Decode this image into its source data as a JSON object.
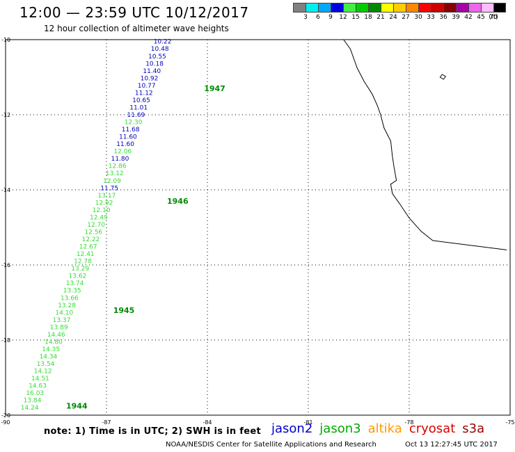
{
  "header": {
    "title": "12:00 — 23:59 UTC 10/12/2017",
    "subtitle": "12 hour collection of altimeter wave heights"
  },
  "legend": {
    "unit": "(ft)",
    "items": [
      {
        "label": "3",
        "color": "#808080"
      },
      {
        "label": "6",
        "color": "#00f0f0"
      },
      {
        "label": "9",
        "color": "#00a8ff"
      },
      {
        "label": "12",
        "color": "#0000e0"
      },
      {
        "label": "15",
        "color": "#44ee44"
      },
      {
        "label": "18",
        "color": "#00cc00"
      },
      {
        "label": "21",
        "color": "#008800"
      },
      {
        "label": "24",
        "color": "#ffff00"
      },
      {
        "label": "27",
        "color": "#ffcc00"
      },
      {
        "label": "30",
        "color": "#ff8800"
      },
      {
        "label": "33",
        "color": "#ff0000"
      },
      {
        "label": "36",
        "color": "#cc0000"
      },
      {
        "label": "39",
        "color": "#880000"
      },
      {
        "label": "42",
        "color": "#aa00aa"
      },
      {
        "label": "45",
        "color": "#ee66ee"
      },
      {
        "label": "70",
        "color": "#ffbbff"
      },
      {
        "label": "",
        "color": "#000000"
      }
    ]
  },
  "map": {
    "lon_range": [
      -90,
      -75
    ],
    "lat_range": [
      -20,
      -10
    ],
    "lon_ticks": [
      "-90",
      "-87",
      "-84",
      "-81",
      "-78",
      "-75"
    ],
    "lat_ticks": [
      "-10",
      "-12",
      "-14",
      "-16",
      "-18",
      "-20"
    ],
    "colors": {
      "jason2": "#0000bb",
      "jason3": "#33dd33",
      "hour_marker": "#008800"
    },
    "hour_markers": [
      "1947",
      "1946",
      "1945",
      "1944"
    ],
    "observations": [
      {
        "value": "10.22",
        "sat": "jason2"
      },
      {
        "value": "10.48",
        "sat": "jason2"
      },
      {
        "value": "10.55",
        "sat": "jason2"
      },
      {
        "value": "10.18",
        "sat": "jason2"
      },
      {
        "value": "11.40",
        "sat": "jason2"
      },
      {
        "value": "10.92",
        "sat": "jason2"
      },
      {
        "value": "10.77",
        "sat": "jason2"
      },
      {
        "value": "11.12",
        "sat": "jason2"
      },
      {
        "value": "10.65",
        "sat": "jason2"
      },
      {
        "value": "11.01",
        "sat": "jason2"
      },
      {
        "value": "11.69",
        "sat": "jason2"
      },
      {
        "value": "12.30",
        "sat": "jason3"
      },
      {
        "value": "11.68",
        "sat": "jason2"
      },
      {
        "value": "11.60",
        "sat": "jason2"
      },
      {
        "value": "11.60",
        "sat": "jason2"
      },
      {
        "value": "12.06",
        "sat": "jason3"
      },
      {
        "value": "11.80",
        "sat": "jason2"
      },
      {
        "value": "12.86",
        "sat": "jason3"
      },
      {
        "value": "13.12",
        "sat": "jason3"
      },
      {
        "value": "12.09",
        "sat": "jason3"
      },
      {
        "value": "11.75",
        "sat": "jason2"
      },
      {
        "value": "13.17",
        "sat": "jason3"
      },
      {
        "value": "12.92",
        "sat": "jason3"
      },
      {
        "value": "12.10",
        "sat": "jason3"
      },
      {
        "value": "12.49",
        "sat": "jason3"
      },
      {
        "value": "12.70",
        "sat": "jason3"
      },
      {
        "value": "12.56",
        "sat": "jason3"
      },
      {
        "value": "12.22",
        "sat": "jason3"
      },
      {
        "value": "12.67",
        "sat": "jason3"
      },
      {
        "value": "12.41",
        "sat": "jason3"
      },
      {
        "value": "12.78",
        "sat": "jason3"
      },
      {
        "value": "13.29",
        "sat": "jason3"
      },
      {
        "value": "13.62",
        "sat": "jason3"
      },
      {
        "value": "13.74",
        "sat": "jason3"
      },
      {
        "value": "13.35",
        "sat": "jason3"
      },
      {
        "value": "13.66",
        "sat": "jason3"
      },
      {
        "value": "13.28",
        "sat": "jason3"
      },
      {
        "value": "14.10",
        "sat": "jason3"
      },
      {
        "value": "13.37",
        "sat": "jason3"
      },
      {
        "value": "13.89",
        "sat": "jason3"
      },
      {
        "value": "14.46",
        "sat": "jason3"
      },
      {
        "value": "14.80",
        "sat": "jason3"
      },
      {
        "value": "14.35",
        "sat": "jason3"
      },
      {
        "value": "14.34",
        "sat": "jason3"
      },
      {
        "value": "13.54",
        "sat": "jason3"
      },
      {
        "value": "14.12",
        "sat": "jason3"
      },
      {
        "value": "14.51",
        "sat": "jason3"
      },
      {
        "value": "14.63",
        "sat": "jason3"
      },
      {
        "value": "16.03",
        "sat": "jason3"
      },
      {
        "value": "13.84",
        "sat": "jason3"
      },
      {
        "value": "14.24",
        "sat": "jason3"
      }
    ]
  },
  "footer": {
    "note": "note: 1) Time is in UTC; 2) SWH is in feet",
    "satellites": [
      {
        "label": "jason2",
        "color": "#0000cc"
      },
      {
        "label": "jason3",
        "color": "#00aa00"
      },
      {
        "label": "altika",
        "color": "#ff9900"
      },
      {
        "label": "cryosat",
        "color": "#dd0000"
      },
      {
        "label": "s3a",
        "color": "#990000"
      }
    ],
    "credit": "NOAA/NESDIS Center for Satellite Applications and Research",
    "timestamp": "Oct 13 12:27:45 UTC 2017"
  }
}
